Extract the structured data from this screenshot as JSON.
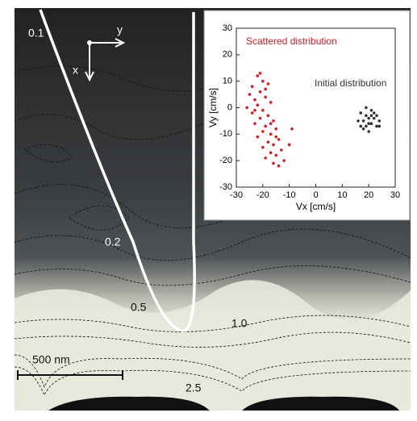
{
  "chart_data": {
    "type": "scatter",
    "xlabel": "Vx [cm/s]",
    "ylabel": "Vy [cm/s]",
    "xlim": [
      -30,
      30
    ],
    "ylim": [
      -30,
      30
    ],
    "xticks": [
      -30,
      -20,
      -10,
      0,
      10,
      20,
      30
    ],
    "yticks": [
      -30,
      -20,
      -10,
      0,
      10,
      20,
      30
    ],
    "series": [
      {
        "name": "Scattered distribution",
        "color": "#e8141b",
        "x": [
          -22,
          -20,
          -24,
          -18,
          -21,
          -25,
          -19,
          -23,
          -17,
          -22,
          -26,
          -20,
          -24,
          -18,
          -21,
          -16,
          -23,
          -19,
          -15,
          -20,
          -17,
          -22,
          -14,
          -18,
          -16,
          -20,
          -13,
          -17,
          -15,
          -19,
          -12,
          -16,
          -14,
          -10,
          -9,
          -21,
          -19,
          -23,
          -17,
          -15
        ],
        "y": [
          12,
          10,
          8,
          9,
          6,
          5,
          4,
          3,
          2,
          1,
          0,
          -1,
          -2,
          -3,
          -4,
          -5,
          -6,
          -7,
          -8,
          -9,
          -10,
          -11,
          -12,
          -13,
          -14,
          -15,
          -16,
          -17,
          -18,
          -19,
          -20,
          -21,
          -22,
          -14,
          -8,
          13,
          7,
          -1,
          -6,
          -11
        ]
      },
      {
        "name": "Initial distribution",
        "color": "#333333",
        "x": [
          16,
          17,
          18,
          19,
          20,
          21,
          22,
          23,
          24,
          18,
          20,
          21,
          19,
          22,
          17,
          23,
          20,
          21,
          19,
          24
        ],
        "y": [
          -5,
          -2,
          -8,
          -3,
          -6,
          -1,
          -4,
          -7,
          -5,
          -5,
          -9,
          -3,
          -7,
          -2,
          -7,
          -3,
          -4,
          -6,
          0,
          -7
        ]
      }
    ]
  },
  "figure": {
    "contour_labels": [
      "0.1",
      "0.2",
      "0.5",
      "1.0",
      "2.5"
    ],
    "scale_bar": "500 nm",
    "axis_x": "x",
    "axis_y": "y"
  }
}
